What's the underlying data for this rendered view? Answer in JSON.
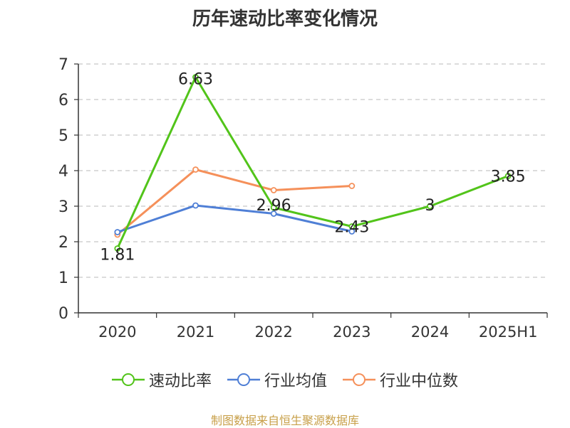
{
  "chart_data": {
    "type": "line",
    "title": "历年速动比率变化情况",
    "categories": [
      "2020",
      "2021",
      "2022",
      "2023",
      "2024",
      "2025H1"
    ],
    "ylim": [
      0,
      7
    ],
    "yticks": [
      "0",
      "1",
      "2",
      "3",
      "4",
      "5",
      "6",
      "7"
    ],
    "grid": true,
    "legend_position": "bottom",
    "series": [
      {
        "name": "速动比率",
        "color": "#52c41a",
        "values": [
          1.81,
          6.63,
          2.96,
          2.43,
          3,
          3.85
        ],
        "labels": [
          "1.81",
          "6.63",
          "2.96",
          "2.43",
          "3",
          "3.85"
        ]
      },
      {
        "name": "行业均值",
        "color": "#4f7fd6",
        "values": [
          2.27,
          3.02,
          2.79,
          2.29,
          null,
          null
        ]
      },
      {
        "name": "行业中位数",
        "color": "#f5905a",
        "values": [
          2.2,
          4.03,
          3.45,
          3.57,
          null,
          null
        ]
      }
    ]
  },
  "source": "制图数据来自恒生聚源数据库"
}
